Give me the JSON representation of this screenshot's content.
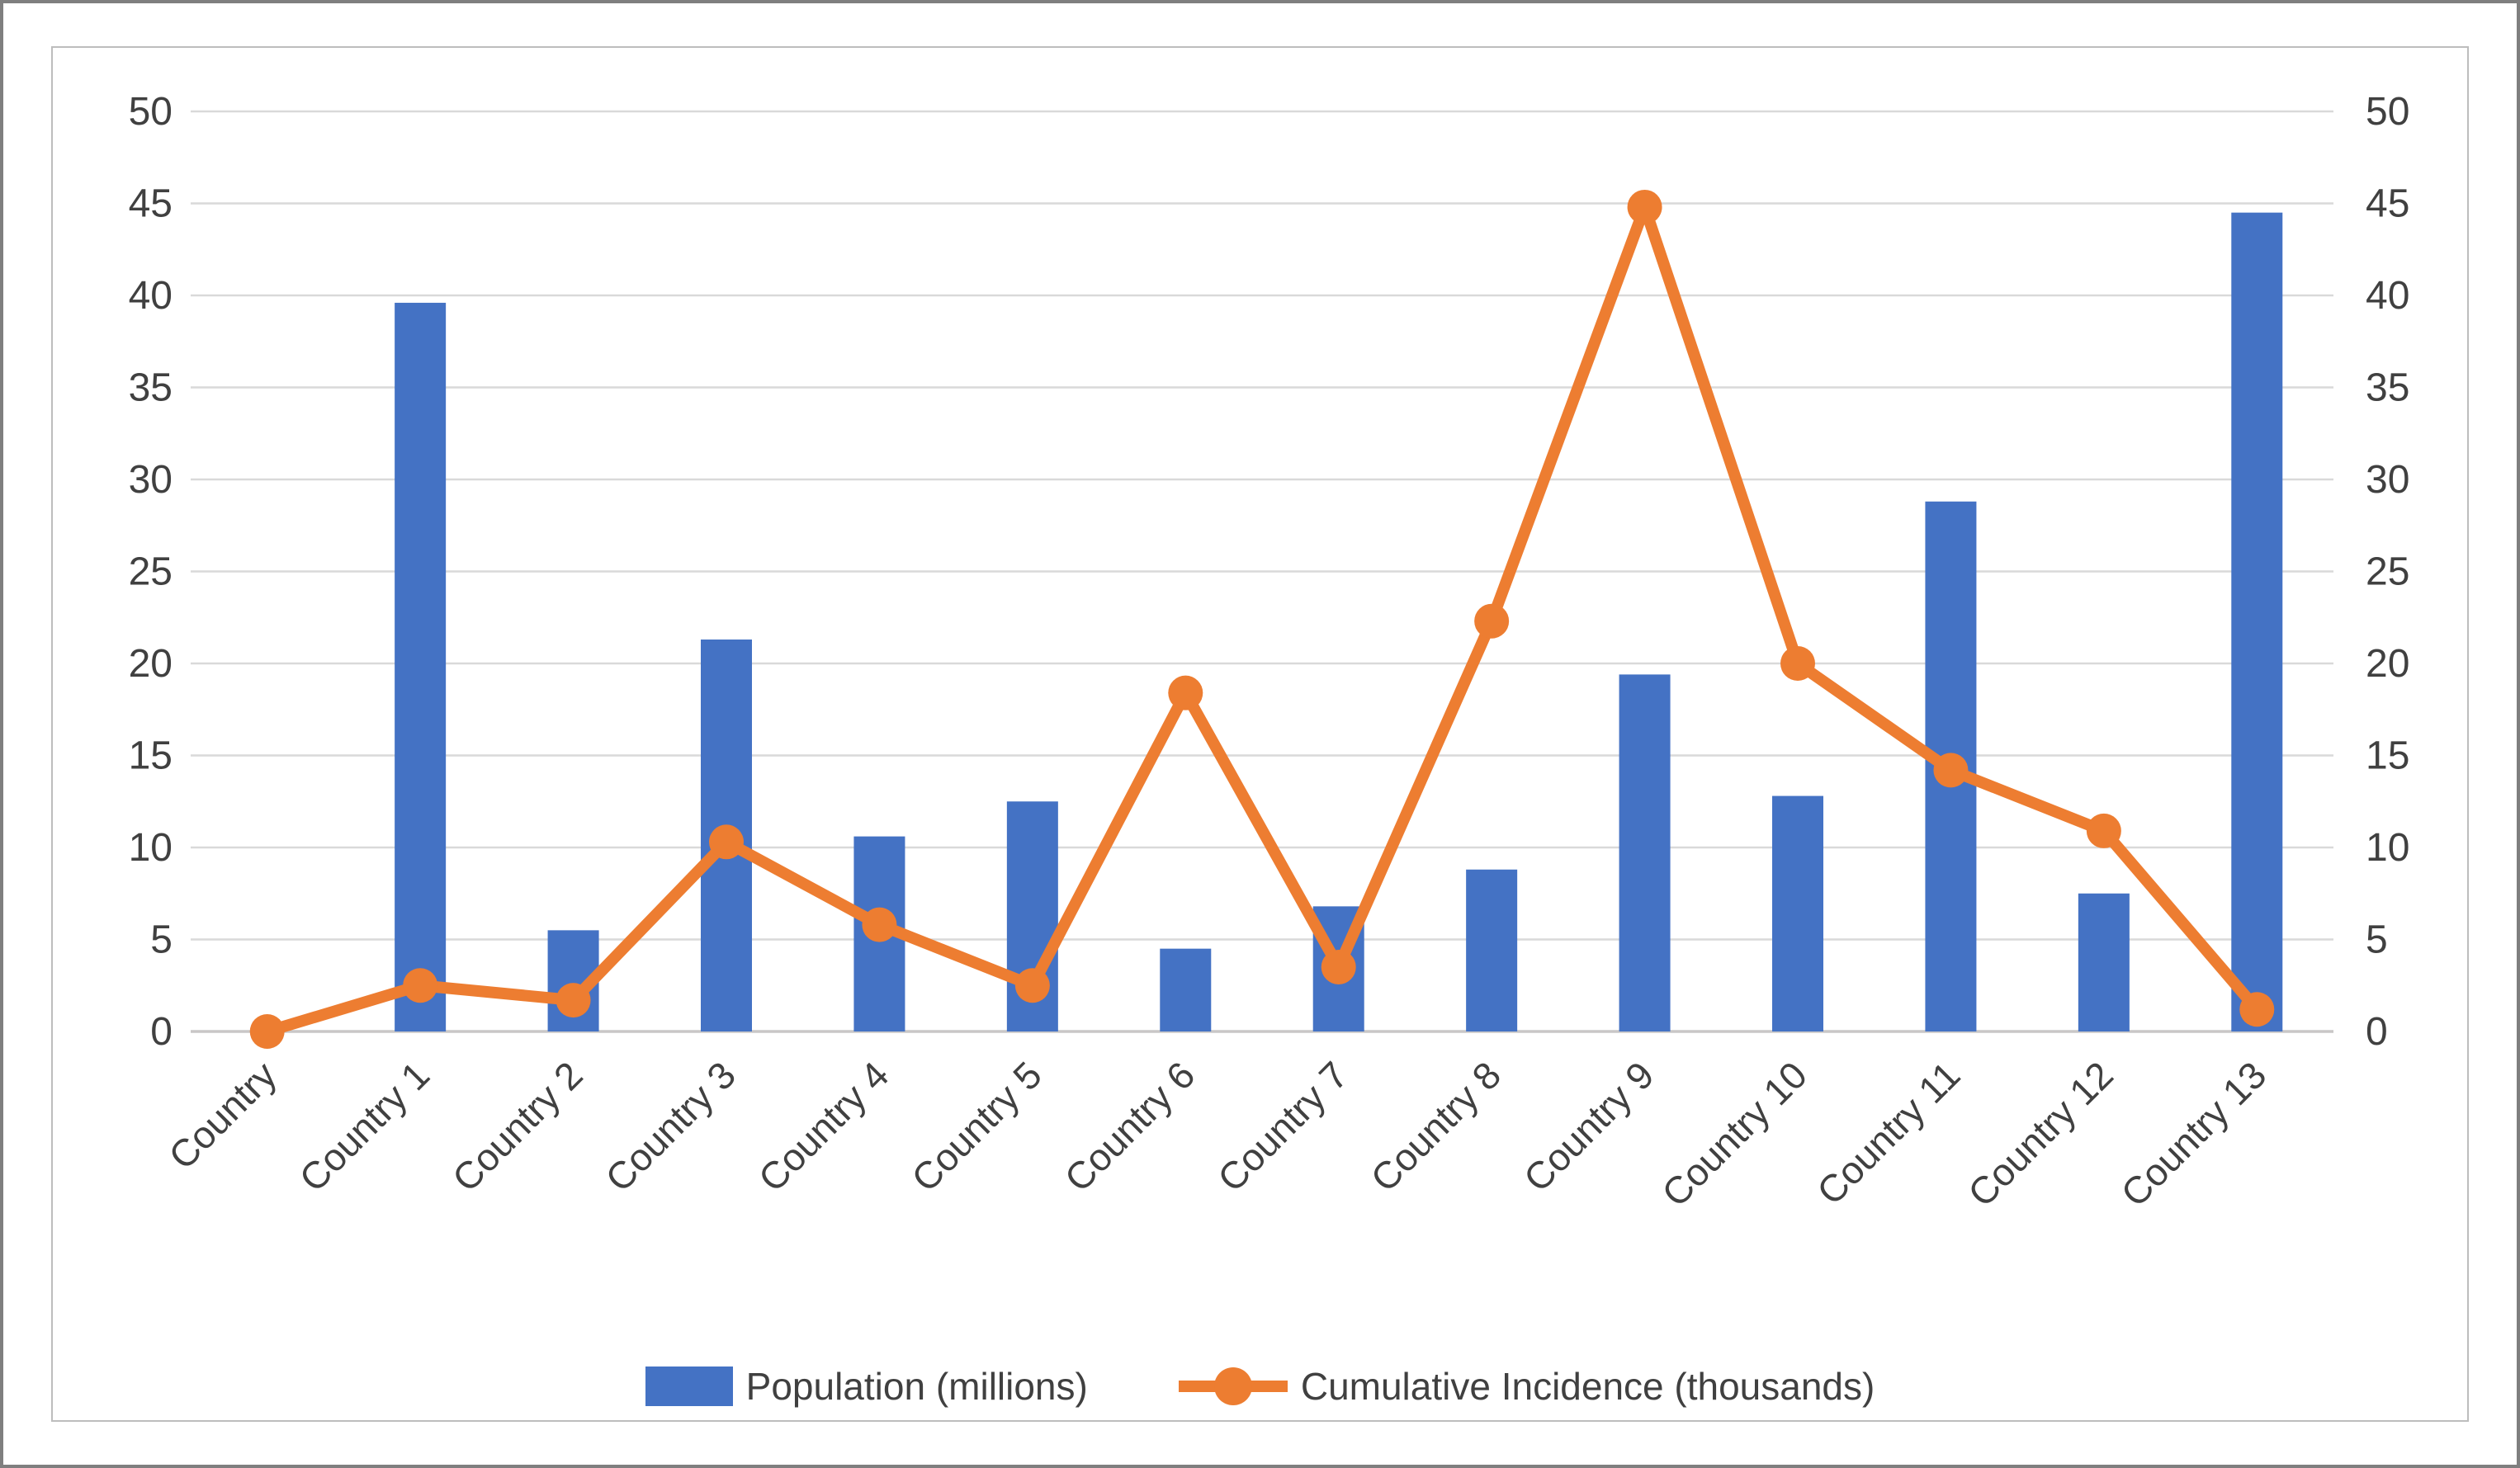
{
  "chart_data": {
    "type": "bar",
    "subtype": "combo-bar-line",
    "title": "",
    "xlabel": "",
    "ylabel_left": "",
    "ylabel_right": "",
    "categories": [
      "Country",
      "Country 1",
      "Country 2",
      "Country 3",
      "Country 4",
      "Country 5",
      "Country 6",
      "Country 7",
      "Country 8",
      "Country 9",
      "Country 10",
      "Country 11",
      "Country 12",
      "Country 13"
    ],
    "series": [
      {
        "name": "Population (millions)",
        "type": "bar",
        "color": "#4472C4",
        "values": [
          0,
          39.6,
          5.5,
          21.3,
          10.6,
          12.5,
          4.5,
          6.8,
          8.8,
          19.4,
          12.8,
          28.8,
          7.5,
          44.5
        ]
      },
      {
        "name": "Cumulative Incidence (thousands)",
        "type": "line",
        "color": "#ED7D31",
        "values": [
          0,
          2.5,
          1.7,
          10.3,
          5.8,
          2.5,
          18.4,
          3.5,
          22.3,
          44.8,
          20,
          14.2,
          10.9,
          1.2
        ]
      }
    ],
    "axis_left": {
      "min": 0,
      "max": 50,
      "step": 5,
      "ticks": [
        "0",
        "5",
        "10",
        "15",
        "20",
        "25",
        "30",
        "35",
        "40",
        "45",
        "50"
      ]
    },
    "axis_right": {
      "min": 0,
      "max": 50,
      "step": 5,
      "ticks": [
        "0",
        "5",
        "10",
        "15",
        "20",
        "25",
        "30",
        "35",
        "40",
        "45",
        "50"
      ]
    },
    "grid": true,
    "gridline_color": "#D9D9D9",
    "axis_line_color": "#C9C7C7",
    "tick_label_color": "#404040",
    "legend_position": "bottom"
  },
  "legend": {
    "items": [
      {
        "label": "Population (millions)",
        "color": "#4472C4",
        "swatch": "bar"
      },
      {
        "label": "Cumulative Incidence (thousands)",
        "color": "#ED7D31",
        "swatch": "line-marker"
      }
    ]
  }
}
